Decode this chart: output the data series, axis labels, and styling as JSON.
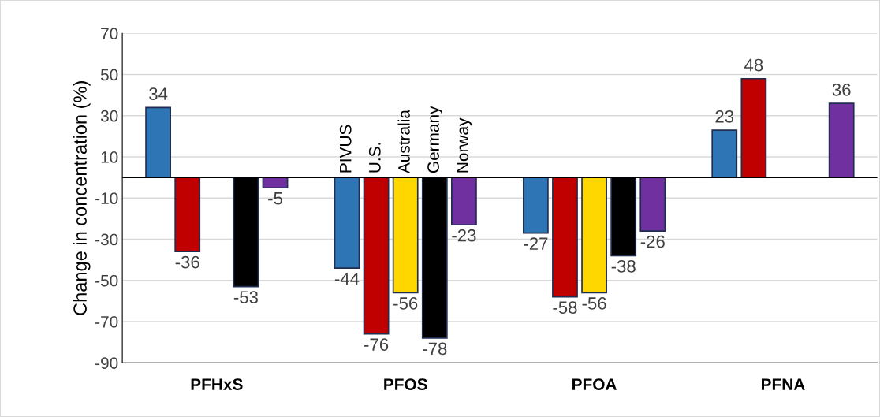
{
  "chart_data": {
    "type": "bar",
    "ylabel": "Change in concentration (%)",
    "categories": [
      "PFHxS",
      "PFOS",
      "PFOA",
      "PFNA"
    ],
    "series": [
      {
        "name": "PIVUS",
        "color": "#2e75b6",
        "values": [
          34,
          -44,
          -27,
          23
        ]
      },
      {
        "name": "U.S.",
        "color": "#c00000",
        "values": [
          -36,
          -76,
          -58,
          48
        ]
      },
      {
        "name": "Australia",
        "color": "#ffd700",
        "values": [
          null,
          -56,
          -56,
          null
        ]
      },
      {
        "name": "Germany",
        "color": "#000000",
        "values": [
          -53,
          -78,
          -38,
          null
        ]
      },
      {
        "name": "Norway",
        "color": "#7030a0",
        "values": [
          -5,
          -23,
          -26,
          36
        ]
      }
    ],
    "ylim": [
      -90,
      70
    ],
    "yticks": [
      -90,
      -70,
      -50,
      -30,
      -10,
      10,
      30,
      50,
      70
    ],
    "grid": "y",
    "data_labels": true,
    "legend": false
  }
}
